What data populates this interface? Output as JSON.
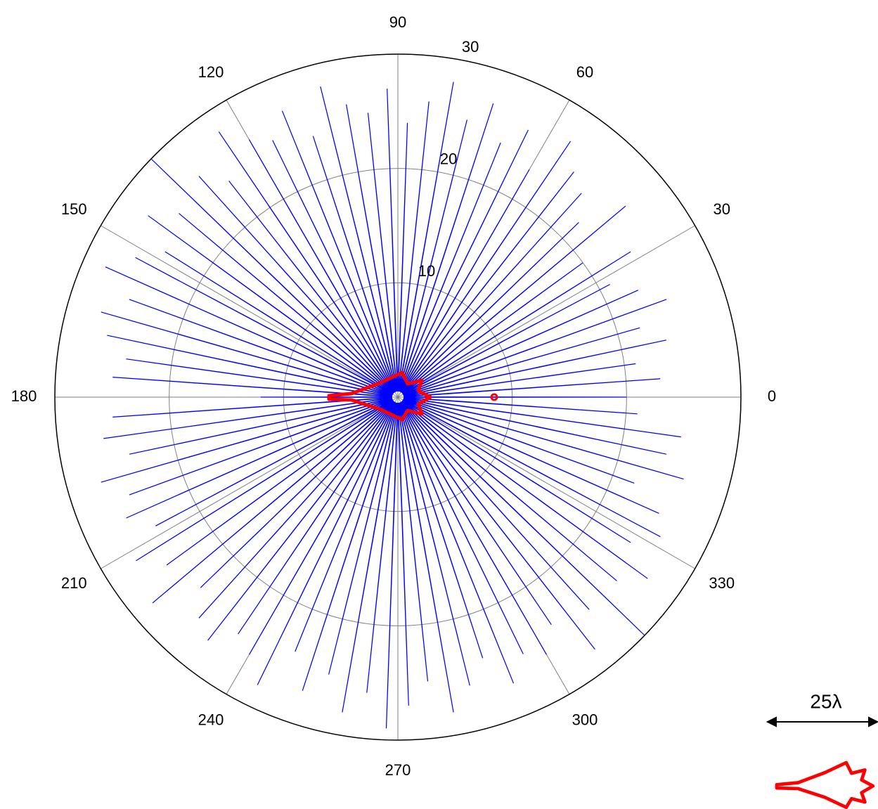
{
  "chart_data": {
    "type": "polar",
    "theta": [
      0,
      2,
      4,
      6,
      8,
      10,
      12,
      14,
      16,
      18,
      20,
      22,
      24,
      26,
      28,
      30,
      32,
      34,
      36,
      38,
      40,
      42,
      44,
      46,
      48,
      50,
      52,
      54,
      56,
      58,
      60,
      62,
      64,
      66,
      68,
      70,
      72,
      74,
      76,
      78,
      80,
      82,
      84,
      86,
      88,
      90,
      92,
      94,
      96,
      98,
      100,
      102,
      104,
      106,
      108,
      110,
      112,
      114,
      116,
      118,
      120,
      122,
      124,
      126,
      128,
      130,
      132,
      134,
      136,
      138,
      140,
      142,
      144,
      146,
      148,
      150,
      152,
      154,
      156,
      158,
      160,
      162,
      164,
      166,
      168,
      170,
      172,
      174,
      176,
      178,
      180,
      182,
      184,
      186,
      188,
      190,
      192,
      194,
      196,
      198,
      200,
      202,
      204,
      206,
      208,
      210,
      212,
      214,
      216,
      218,
      220,
      222,
      224,
      226,
      228,
      230,
      232,
      234,
      236,
      238,
      240,
      242,
      244,
      246,
      248,
      250,
      252,
      254,
      256,
      258,
      260,
      262,
      264,
      266,
      268,
      270,
      272,
      274,
      276,
      278,
      280,
      282,
      284,
      286,
      288,
      290,
      292,
      294,
      296,
      298,
      300,
      302,
      304,
      306,
      308,
      310,
      312,
      314,
      316,
      318,
      320,
      322,
      324,
      326,
      328,
      330,
      332,
      334,
      336,
      338,
      340,
      342,
      344,
      346,
      348,
      350,
      352,
      354,
      356,
      358
    ],
    "series": [
      {
        "color": "#0000ff",
        "values": [
          20,
          0.5,
          23,
          0.5,
          21,
          0.5,
          24,
          0.5,
          22,
          0.5,
          25,
          0.5,
          23,
          0.5,
          21,
          0.5,
          24,
          0.5,
          20,
          0.5,
          26,
          0.5,
          22,
          0.5,
          24,
          0.5,
          25,
          0.5,
          27,
          0.5,
          23,
          0.5,
          26,
          0.5,
          24,
          0.5,
          27,
          0.5,
          25,
          0.5,
          28,
          0.5,
          26,
          0.5,
          24,
          0.5,
          27,
          0.5,
          25,
          0.5,
          26,
          0.5,
          28,
          0.5,
          24,
          0.5,
          27,
          0.5,
          25,
          0.5,
          26,
          0.5,
          28,
          0.5,
          24,
          0.5,
          26,
          0.5,
          30,
          0.5,
          25,
          0.5,
          27,
          0.5,
          24,
          0.5,
          26,
          0.5,
          28,
          0.5,
          25,
          0.5,
          27,
          0.5,
          26,
          0.5,
          24,
          0.5,
          25,
          0.5,
          12,
          0.5,
          25,
          0.5,
          26,
          0.5,
          24,
          0.5,
          27,
          0.5,
          25,
          0.5,
          26,
          0.5,
          24,
          0.5,
          27,
          0.5,
          25,
          0.5,
          28,
          0.5,
          24,
          0.5,
          26,
          0.5,
          27,
          0.5,
          25,
          0.5,
          26,
          0.5,
          28,
          0.5,
          24,
          0.5,
          27,
          0.5,
          25,
          0.5,
          28,
          0.5,
          26,
          0.5,
          29,
          0.5,
          27,
          0.5,
          25,
          0.5,
          28,
          0.5,
          26,
          0.5,
          24,
          0.5,
          27,
          0.5,
          25,
          0.5,
          26,
          0.5,
          24,
          0.5,
          28,
          0.5,
          25,
          0.5,
          30,
          0.5,
          25,
          0.5,
          27,
          0.5,
          24,
          0.5,
          26,
          0.5,
          25,
          0.5,
          22,
          0.5,
          26,
          0.5,
          24,
          0.5,
          25,
          0.5,
          21,
          0.5
        ]
      }
    ],
    "rlim": [
      0,
      30
    ],
    "rticks": [
      10,
      20,
      30
    ],
    "thetaticks": [
      0,
      30,
      60,
      90,
      120,
      150,
      180,
      210,
      240,
      270,
      300,
      330
    ],
    "grid": true,
    "annotations": [
      "25λ"
    ]
  }
}
